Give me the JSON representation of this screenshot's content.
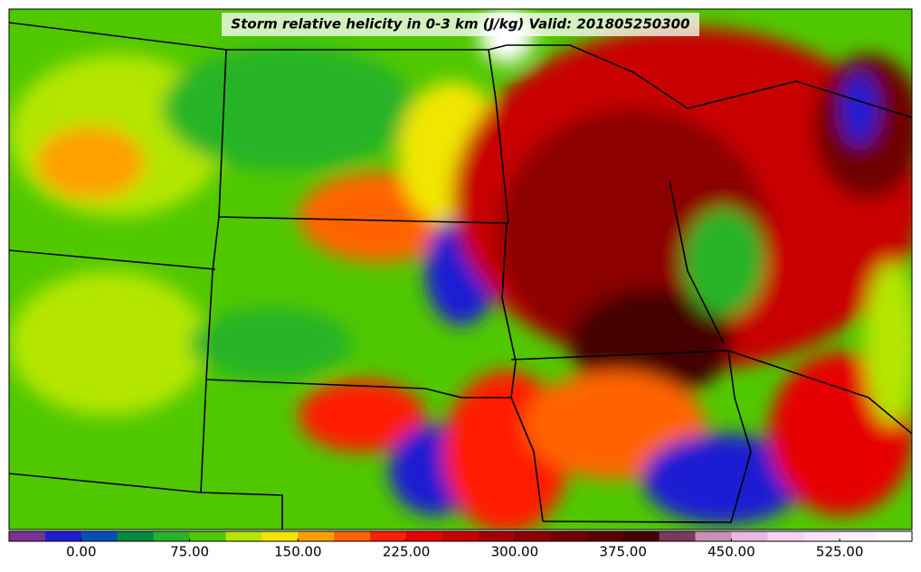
{
  "map": {
    "title": "Storm relative helicity in 0-3 km (J/kg) Valid: 201805250300",
    "colorbar": {
      "lim": [
        -50,
        575
      ],
      "colors": [
        "#7b3294",
        "#1e1ed2",
        "#0050b4",
        "#008c3c",
        "#28b428",
        "#50c800",
        "#b4e600",
        "#f0e600",
        "#ffa000",
        "#ff6400",
        "#ff1e00",
        "#e60000",
        "#c80000",
        "#a50000",
        "#8c0000",
        "#700000",
        "#5a0000",
        "#450000",
        "#7a3a5a",
        "#c890b4",
        "#e8b8e0",
        "#f4d4f0",
        "#f8e4f8",
        "#fcf0fc",
        "#ffffff"
      ],
      "ticks": [
        {
          "value": 0,
          "label": "0.00"
        },
        {
          "value": 75,
          "label": "75.00"
        },
        {
          "value": 150,
          "label": "150.00"
        },
        {
          "value": 225,
          "label": "225.00"
        },
        {
          "value": 300,
          "label": "300.00"
        },
        {
          "value": 375,
          "label": "375.00"
        },
        {
          "value": 450,
          "label": "450.00"
        },
        {
          "value": 525,
          "label": "525.00"
        }
      ]
    }
  }
}
